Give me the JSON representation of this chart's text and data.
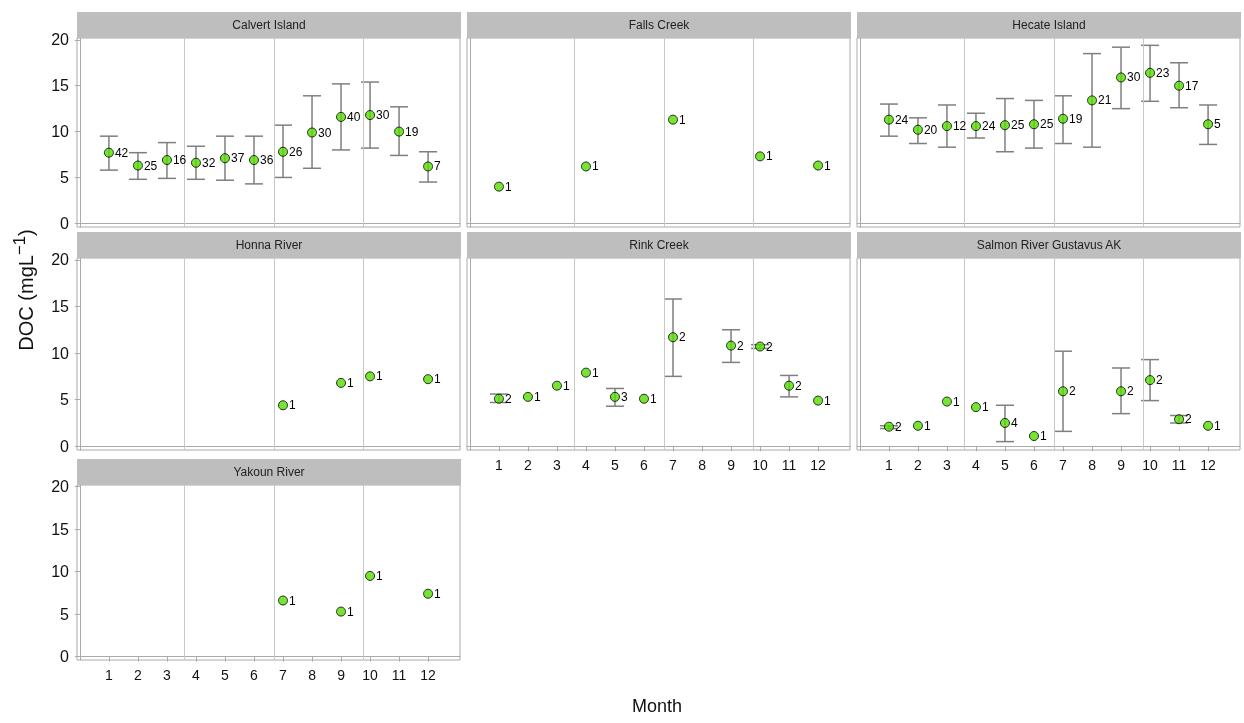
{
  "chart_data": [
    {
      "type": "scatter",
      "title": "Calvert Island",
      "x": [
        1,
        2,
        3,
        4,
        5,
        6,
        7,
        8,
        9,
        10,
        11,
        12
      ],
      "values": [
        7.7,
        6.3,
        6.9,
        6.6,
        7.1,
        6.9,
        7.8,
        9.9,
        11.6,
        11.8,
        10.0,
        6.2
      ],
      "errors": [
        [
          5.8,
          9.5
        ],
        [
          4.8,
          7.7
        ],
        [
          4.9,
          8.8
        ],
        [
          4.8,
          8.4
        ],
        [
          4.7,
          9.5
        ],
        [
          4.3,
          9.5
        ],
        [
          5.0,
          10.7
        ],
        [
          6.0,
          13.9
        ],
        [
          8.0,
          15.2
        ],
        [
          8.2,
          15.4
        ],
        [
          7.4,
          12.7
        ],
        [
          4.5,
          7.8
        ]
      ],
      "annotations": [
        {
          "text": "42",
          "x": 1,
          "y": 7.7
        },
        {
          "text": "25",
          "x": 2,
          "y": 6.3
        },
        {
          "text": "16",
          "x": 3,
          "y": 6.9
        },
        {
          "text": "32",
          "x": 4,
          "y": 6.6
        },
        {
          "text": "37",
          "x": 5,
          "y": 7.1
        },
        {
          "text": "36",
          "x": 6,
          "y": 6.9
        },
        {
          "text": "26",
          "x": 7,
          "y": 7.8
        },
        {
          "text": "30",
          "x": 8,
          "y": 9.9
        },
        {
          "text": "40",
          "x": 9,
          "y": 11.6
        },
        {
          "text": "30",
          "x": 10,
          "y": 11.8
        },
        {
          "text": "19",
          "x": 11,
          "y": 10.0
        },
        {
          "text": "7",
          "x": 12,
          "y": 6.2
        }
      ],
      "color": "#55dd00",
      "marker": "circle",
      "xlim": [
        -0.1,
        13.1
      ],
      "xticks": [
        1,
        2,
        3,
        4,
        5,
        6,
        7,
        8,
        9,
        10,
        11,
        12
      ],
      "ylim": [
        -0.4,
        20.2
      ],
      "yticks": [
        0,
        5,
        10,
        15,
        20
      ],
      "ref_lines": [
        {
          "axis": "x",
          "value": 3.6,
          "color": "#c8c8c8"
        },
        {
          "axis": "x",
          "value": 6.7,
          "color": "#c8c8c8"
        },
        {
          "axis": "x",
          "value": 9.75,
          "color": "#c8c8c8"
        }
      ],
      "tick_labels": "y"
    },
    {
      "type": "scatter",
      "title": "Falls Creek",
      "x": [
        1,
        4,
        7,
        10,
        12
      ],
      "values": [
        4.0,
        6.2,
        11.3,
        7.3,
        6.3
      ],
      "annotations": [
        {
          "text": "1",
          "x": 1,
          "y": 4.0
        },
        {
          "text": "1",
          "x": 4,
          "y": 6.2
        },
        {
          "text": "1",
          "x": 7,
          "y": 11.3
        },
        {
          "text": "1",
          "x": 10,
          "y": 7.3
        },
        {
          "text": "1",
          "x": 12,
          "y": 6.3
        }
      ],
      "color": "#55dd00",
      "marker": "circle",
      "xlim": [
        -0.1,
        13.1
      ],
      "xticks": [
        1,
        2,
        3,
        4,
        5,
        6,
        7,
        8,
        9,
        10,
        11,
        12
      ],
      "ylim": [
        -0.4,
        20.2
      ],
      "yticks": [
        0,
        5,
        10,
        15,
        20
      ],
      "ref_lines": [
        {
          "axis": "x",
          "value": 3.6,
          "color": "#c8c8c8"
        },
        {
          "axis": "x",
          "value": 6.7,
          "color": "#c8c8c8"
        },
        {
          "axis": "x",
          "value": 9.75,
          "color": "#c8c8c8"
        }
      ],
      "tick_labels": false
    },
    {
      "type": "scatter",
      "title": "Hecate Island",
      "x": [
        1,
        2,
        3,
        4,
        5,
        6,
        7,
        8,
        9,
        10,
        11,
        12
      ],
      "values": [
        11.3,
        10.2,
        10.6,
        10.6,
        10.7,
        10.8,
        11.4,
        13.4,
        15.9,
        16.4,
        15.0,
        10.8
      ],
      "errors": [
        [
          9.5,
          13.0
        ],
        [
          8.7,
          11.5
        ],
        [
          8.3,
          12.9
        ],
        [
          9.3,
          12.0
        ],
        [
          7.8,
          13.6
        ],
        [
          8.2,
          13.4
        ],
        [
          8.7,
          13.9
        ],
        [
          8.3,
          18.5
        ],
        [
          12.5,
          19.2
        ],
        [
          13.3,
          19.4
        ],
        [
          12.6,
          17.5
        ],
        [
          8.6,
          12.9
        ]
      ],
      "annotations": [
        {
          "text": "24",
          "x": 1,
          "y": 11.3
        },
        {
          "text": "20",
          "x": 2,
          "y": 10.2
        },
        {
          "text": "12",
          "x": 3,
          "y": 10.6
        },
        {
          "text": "24",
          "x": 4,
          "y": 10.6
        },
        {
          "text": "25",
          "x": 5,
          "y": 10.7
        },
        {
          "text": "25",
          "x": 6,
          "y": 10.8
        },
        {
          "text": "19",
          "x": 7,
          "y": 11.4
        },
        {
          "text": "21",
          "x": 8,
          "y": 13.4
        },
        {
          "text": "30",
          "x": 9,
          "y": 15.9
        },
        {
          "text": "23",
          "x": 10,
          "y": 16.4
        },
        {
          "text": "17",
          "x": 11,
          "y": 15.0
        },
        {
          "text": "5",
          "x": 12,
          "y": 10.8
        }
      ],
      "color": "#55dd00",
      "marker": "circle",
      "xlim": [
        -0.1,
        13.1
      ],
      "xticks": [
        1,
        2,
        3,
        4,
        5,
        6,
        7,
        8,
        9,
        10,
        11,
        12
      ],
      "ylim": [
        -0.4,
        20.2
      ],
      "yticks": [
        0,
        5,
        10,
        15,
        20
      ],
      "ref_lines": [
        {
          "axis": "x",
          "value": 3.6,
          "color": "#c8c8c8"
        },
        {
          "axis": "x",
          "value": 6.7,
          "color": "#c8c8c8"
        },
        {
          "axis": "x",
          "value": 9.75,
          "color": "#c8c8c8"
        }
      ],
      "tick_labels": false
    },
    {
      "type": "scatter",
      "title": "Honna River",
      "ylabel": "DOC (mgL$^{−1}$)",
      "x": [
        7,
        9,
        10,
        12
      ],
      "values": [
        4.4,
        6.8,
        7.5,
        7.2
      ],
      "annotations": [
        {
          "text": "1",
          "x": 7,
          "y": 4.4
        },
        {
          "text": "1",
          "x": 9,
          "y": 6.8
        },
        {
          "text": "1",
          "x": 10,
          "y": 7.5
        },
        {
          "text": "1",
          "x": 12,
          "y": 7.2
        }
      ],
      "color": "#55dd00",
      "marker": "circle",
      "xlim": [
        -0.1,
        13.1
      ],
      "xticks": [
        1,
        2,
        3,
        4,
        5,
        6,
        7,
        8,
        9,
        10,
        11,
        12
      ],
      "ylim": [
        -0.4,
        20.2
      ],
      "yticks": [
        0,
        5,
        10,
        15,
        20
      ],
      "ref_lines": [
        {
          "axis": "x",
          "value": 3.6,
          "color": "#c8c8c8"
        },
        {
          "axis": "x",
          "value": 6.7,
          "color": "#c8c8c8"
        },
        {
          "axis": "x",
          "value": 9.75,
          "color": "#c8c8c8"
        }
      ],
      "tick_labels": "y"
    },
    {
      "type": "scatter",
      "title": "Rink Creek",
      "xlabel": "Month",
      "x": [
        1,
        2,
        3,
        4,
        5,
        6,
        7,
        9,
        10,
        11,
        12
      ],
      "values": [
        5.1,
        5.3,
        6.5,
        7.9,
        5.3,
        5.1,
        11.7,
        10.8,
        10.7,
        6.5,
        4.9
      ],
      "errors": [
        [
          4.7,
          5.6
        ],
        null,
        null,
        null,
        [
          4.3,
          6.2
        ],
        null,
        [
          7.5,
          15.8
        ],
        [
          9.0,
          12.5
        ],
        [
          10.5,
          10.9
        ],
        [
          5.3,
          7.6
        ],
        null
      ],
      "annotations": [
        {
          "text": "2",
          "x": 1,
          "y": 5.1
        },
        {
          "text": "1",
          "x": 2,
          "y": 5.3
        },
        {
          "text": "1",
          "x": 3,
          "y": 6.5
        },
        {
          "text": "1",
          "x": 4,
          "y": 7.9
        },
        {
          "text": "3",
          "x": 5,
          "y": 5.3
        },
        {
          "text": "1",
          "x": 6,
          "y": 5.1
        },
        {
          "text": "2",
          "x": 7,
          "y": 11.7
        },
        {
          "text": "2",
          "x": 9,
          "y": 10.8
        },
        {
          "text": "2",
          "x": 10,
          "y": 10.7
        },
        {
          "text": "2",
          "x": 11,
          "y": 6.5
        },
        {
          "text": "1",
          "x": 12,
          "y": 4.9
        }
      ],
      "color": "#55dd00",
      "marker": "circle",
      "xlim": [
        -0.1,
        13.1
      ],
      "xticks": [
        1,
        2,
        3,
        4,
        5,
        6,
        7,
        8,
        9,
        10,
        11,
        12
      ],
      "ylim": [
        -0.4,
        20.2
      ],
      "yticks": [
        0,
        5,
        10,
        15,
        20
      ],
      "ref_lines": [
        {
          "axis": "x",
          "value": 3.6,
          "color": "#c8c8c8"
        },
        {
          "axis": "x",
          "value": 6.7,
          "color": "#c8c8c8"
        },
        {
          "axis": "x",
          "value": 9.75,
          "color": "#c8c8c8"
        }
      ],
      "tick_labels": "x"
    },
    {
      "type": "scatter",
      "title": "Salmon River Gustavus AK",
      "x": [
        1,
        2,
        3,
        4,
        5,
        6,
        7,
        9,
        10,
        11,
        12
      ],
      "values": [
        2.1,
        2.2,
        4.8,
        4.2,
        2.5,
        1.1,
        5.9,
        5.9,
        7.1,
        2.9,
        2.2
      ],
      "errors": [
        [
          1.9,
          2.2
        ],
        null,
        null,
        null,
        [
          0.5,
          4.4
        ],
        null,
        [
          1.6,
          10.2
        ],
        [
          3.5,
          8.4
        ],
        [
          4.9,
          9.3
        ],
        [
          2.5,
          3.3
        ],
        null
      ],
      "annotations": [
        {
          "text": "2",
          "x": 1,
          "y": 2.1
        },
        {
          "text": "1",
          "x": 2,
          "y": 2.2
        },
        {
          "text": "1",
          "x": 3,
          "y": 4.8
        },
        {
          "text": "1",
          "x": 4,
          "y": 4.2
        },
        {
          "text": "4",
          "x": 5,
          "y": 2.5
        },
        {
          "text": "1",
          "x": 6,
          "y": 1.1
        },
        {
          "text": "2",
          "x": 7,
          "y": 5.9
        },
        {
          "text": "2",
          "x": 9,
          "y": 5.9
        },
        {
          "text": "2",
          "x": 10,
          "y": 7.1
        },
        {
          "text": "2",
          "x": 11,
          "y": 2.9
        },
        {
          "text": "1",
          "x": 12,
          "y": 2.2
        }
      ],
      "color": "#55dd00",
      "marker": "circle",
      "xlim": [
        -0.1,
        13.1
      ],
      "xticks": [
        1,
        2,
        3,
        4,
        5,
        6,
        7,
        8,
        9,
        10,
        11,
        12
      ],
      "ylim": [
        -0.4,
        20.2
      ],
      "yticks": [
        0,
        5,
        10,
        15,
        20
      ],
      "ref_lines": [
        {
          "axis": "x",
          "value": 3.6,
          "color": "#c8c8c8"
        },
        {
          "axis": "x",
          "value": 6.7,
          "color": "#c8c8c8"
        },
        {
          "axis": "x",
          "value": 9.75,
          "color": "#c8c8c8"
        }
      ],
      "tick_labels": "x"
    },
    {
      "type": "scatter",
      "title": "Yakoun River",
      "x": [
        7,
        9,
        10,
        12
      ],
      "values": [
        6.6,
        5.3,
        9.5,
        7.4
      ],
      "annotations": [
        {
          "text": "1",
          "x": 7,
          "y": 6.6
        },
        {
          "text": "1",
          "x": 9,
          "y": 5.3
        },
        {
          "text": "1",
          "x": 10,
          "y": 9.5
        },
        {
          "text": "1",
          "x": 12,
          "y": 7.4
        }
      ],
      "color": "#55dd00",
      "marker": "circle",
      "xlim": [
        -0.1,
        13.1
      ],
      "xticks": [
        1,
        2,
        3,
        4,
        5,
        6,
        7,
        8,
        9,
        10,
        11,
        12
      ],
      "ylim": [
        -0.4,
        20.2
      ],
      "yticks": [
        0,
        5,
        10,
        15,
        20
      ],
      "ref_lines": [
        {
          "axis": "x",
          "value": 3.6,
          "color": "#c8c8c8"
        },
        {
          "axis": "x",
          "value": 6.7,
          "color": "#c8c8c8"
        },
        {
          "axis": "x",
          "value": 9.75,
          "color": "#c8c8c8"
        }
      ]
    }
  ]
}
